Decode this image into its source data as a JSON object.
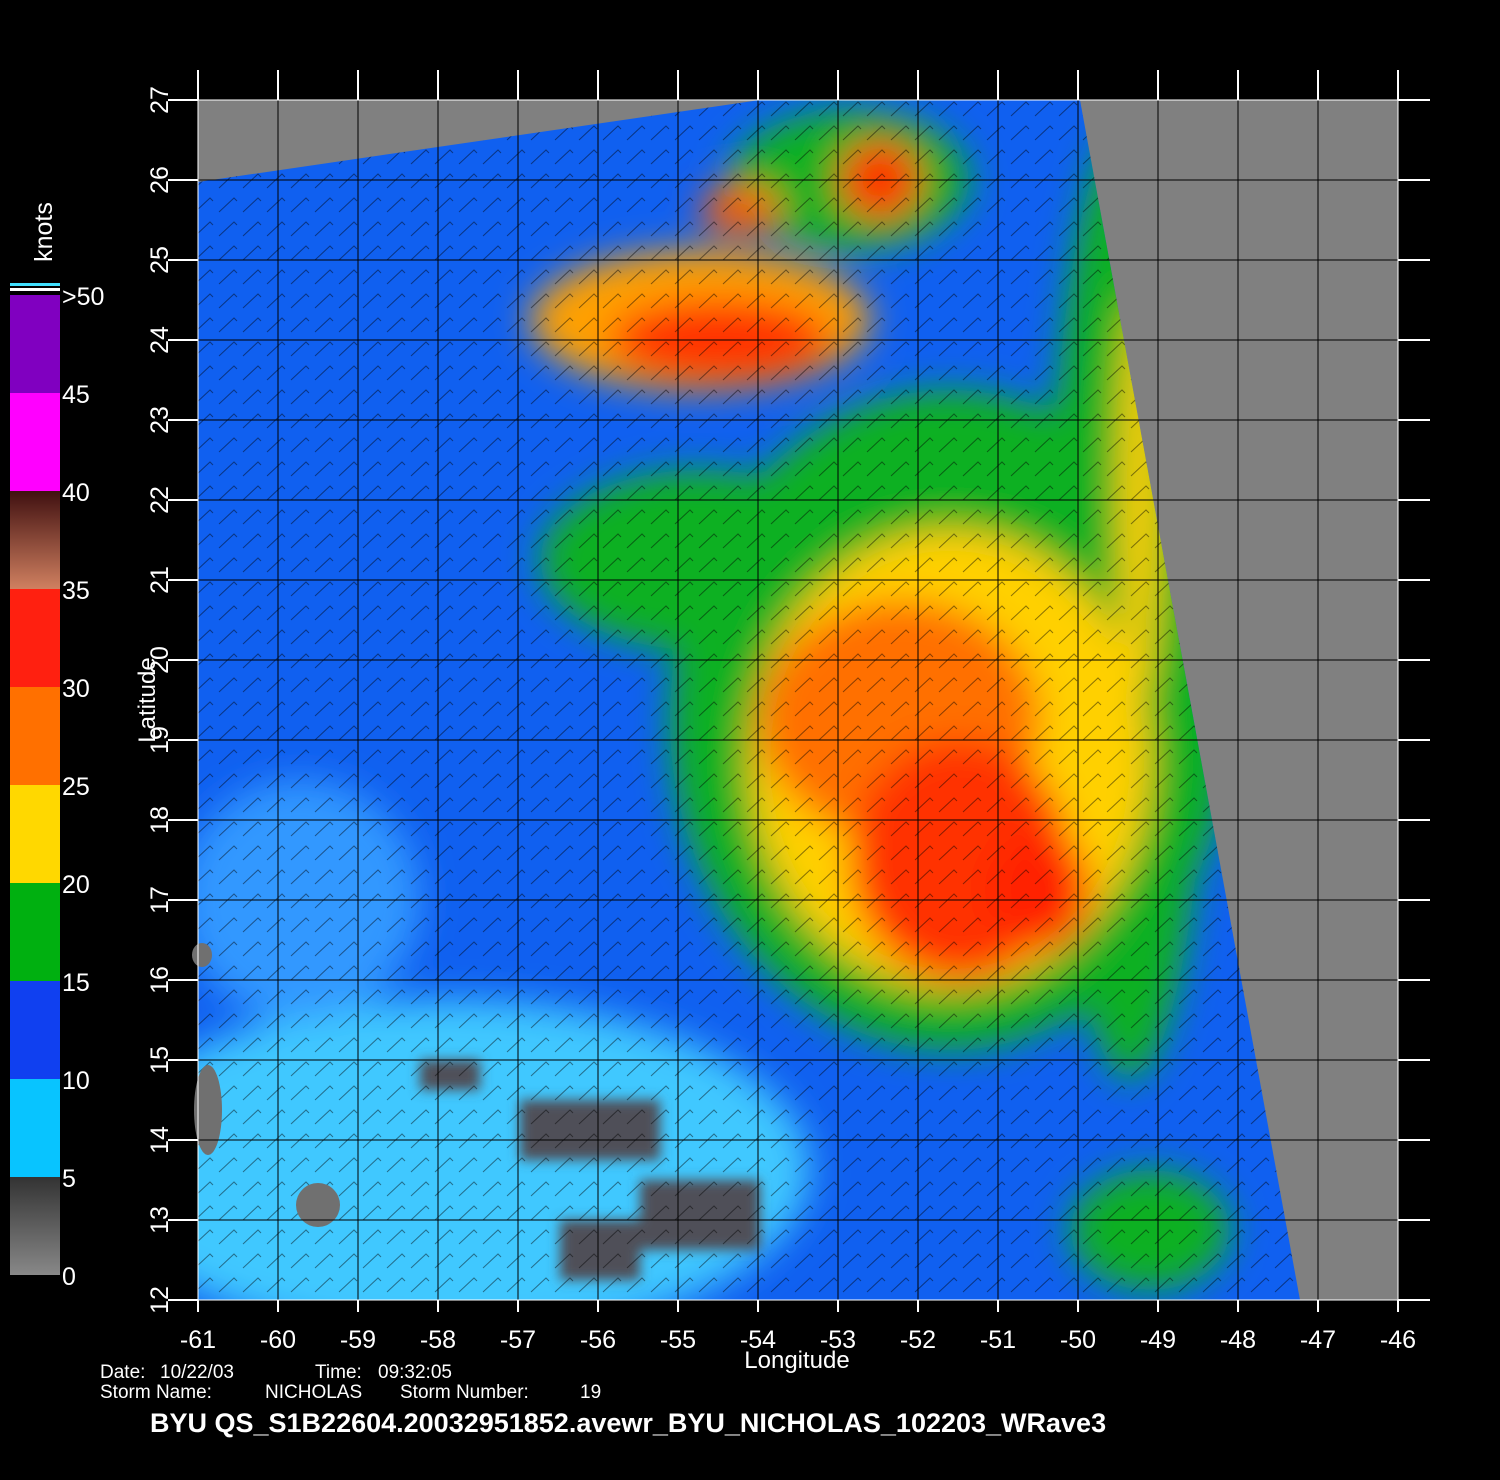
{
  "map": {
    "title": "BYU  QS_S1B22604.20032951852.avewr_BYU_NICHOLAS_102203_WRave3",
    "info": {
      "date_label": "Date:",
      "date": "10/22/03",
      "time_label": "Time:",
      "time": "09:32:05",
      "storm_name_label": "Storm  Name:",
      "storm_name": "NICHOLAS",
      "storm_number_label": "Storm  Number:",
      "storm_number": 19
    },
    "x_axis": {
      "label": "Longitude",
      "lim": [
        -61,
        -46
      ],
      "ticks": [
        -61,
        -60,
        -59,
        -58,
        -57,
        -56,
        -55,
        -54,
        -53,
        -52,
        -51,
        -50,
        -49,
        -48,
        -47,
        -46
      ]
    },
    "y_axis": {
      "label": "Latitude",
      "lim": [
        12,
        27
      ],
      "ticks": [
        12,
        13,
        14,
        15,
        16,
        17,
        18,
        19,
        20,
        21,
        22,
        23,
        24,
        25,
        26,
        27
      ]
    },
    "colorbar": {
      "unit": "knots",
      "lim": [
        0,
        50
      ],
      "ticks": [
        0,
        5,
        10,
        15,
        20,
        25,
        30,
        35,
        40,
        45,
        {
          "value": 50,
          "label": ">50"
        }
      ]
    }
  }
}
